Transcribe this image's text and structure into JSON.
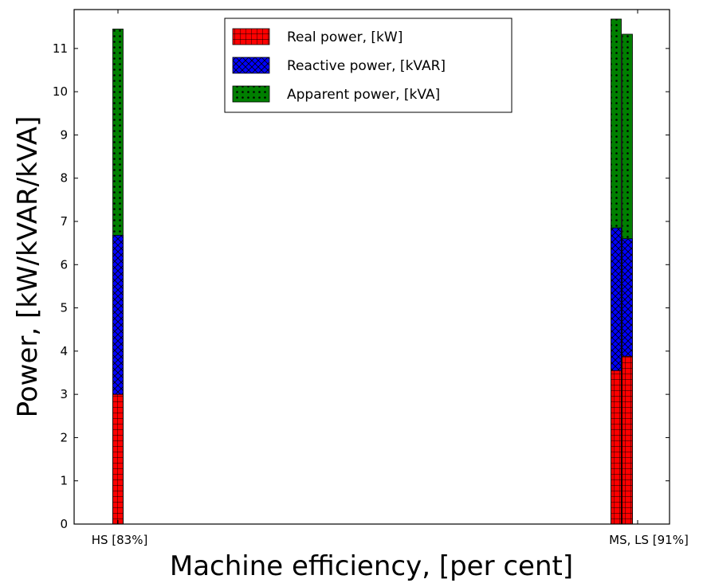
{
  "chart_data": {
    "type": "bar",
    "stacked": true,
    "xlabel": "Machine efficiency, [per cent]",
    "ylabel": "Power, [kW/kVAR/kVA]",
    "ylim": [
      0,
      11.9
    ],
    "yticks": [
      0,
      1,
      2,
      3,
      4,
      5,
      6,
      7,
      8,
      9,
      10,
      11
    ],
    "grid": false,
    "legend_position": "top-center",
    "x_tick_labels": [
      "HS [83%]",
      "MS, LS [91%]"
    ],
    "bars": [
      {
        "group": "HS [83%]",
        "real": 3.0,
        "reactive": 6.68,
        "apparent": 11.45
      },
      {
        "group": "MS, LS [91%]",
        "real": 3.55,
        "reactive": 6.85,
        "apparent": 11.68
      },
      {
        "group": "MS, LS [91%]",
        "real": 3.88,
        "reactive": 6.6,
        "apparent": 11.33
      }
    ],
    "series": [
      {
        "key": "real",
        "name": "Real power, [kW]",
        "color": "#ff0000",
        "hatch": "grid"
      },
      {
        "key": "reactive",
        "name": "Reactive power, [kVAR]",
        "color": "#0000ff",
        "hatch": "cross"
      },
      {
        "key": "apparent",
        "name": "Apparent power, [kVA]",
        "color": "#007f00",
        "hatch": "dots"
      }
    ]
  }
}
